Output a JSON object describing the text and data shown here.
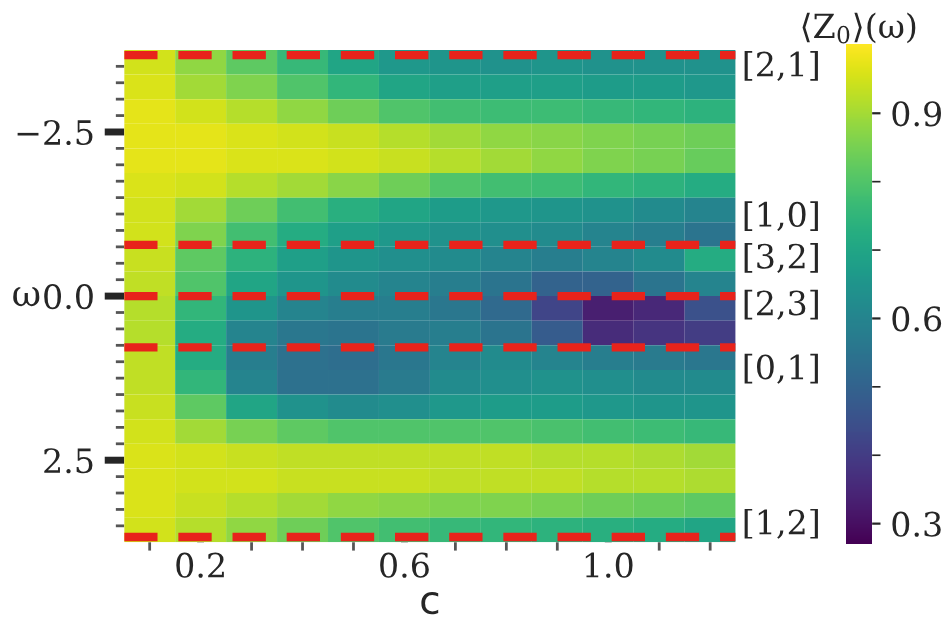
{
  "chart_data": {
    "type": "heatmap",
    "xlabel": "c",
    "ylabel": "ω",
    "clabel": "⟨Z$_{0}$⟩(ω)",
    "x": [
      0.1,
      0.2,
      0.3,
      0.4,
      0.5,
      0.6,
      0.7,
      0.8,
      0.9,
      1.0,
      1.1,
      1.2
    ],
    "y": [
      -3.5625,
      -3.1875,
      -2.8125,
      -2.4375,
      -2.0625,
      -1.6875,
      -1.3125,
      -0.9375,
      -0.5625,
      -0.1875,
      0.1875,
      0.5625,
      0.9375,
      1.3125,
      1.6875,
      2.0625,
      2.4375,
      2.8125,
      3.1875,
      3.5625
    ],
    "cells": [
      [
        0.95,
        0.88,
        0.82,
        0.76,
        0.7,
        0.66,
        0.65,
        0.64,
        0.65,
        0.64,
        0.64,
        0.64
      ],
      [
        0.96,
        0.9,
        0.86,
        0.8,
        0.75,
        0.7,
        0.68,
        0.68,
        0.68,
        0.67,
        0.67,
        0.66
      ],
      [
        0.97,
        0.95,
        0.92,
        0.88,
        0.84,
        0.8,
        0.78,
        0.77,
        0.77,
        0.76,
        0.75,
        0.74
      ],
      [
        0.97,
        0.97,
        0.96,
        0.95,
        0.94,
        0.92,
        0.9,
        0.88,
        0.87,
        0.86,
        0.85,
        0.84
      ],
      [
        0.97,
        0.97,
        0.96,
        0.96,
        0.95,
        0.94,
        0.92,
        0.9,
        0.88,
        0.86,
        0.85,
        0.83
      ],
      [
        0.96,
        0.95,
        0.92,
        0.9,
        0.87,
        0.84,
        0.8,
        0.78,
        0.77,
        0.75,
        0.74,
        0.72
      ],
      [
        0.95,
        0.9,
        0.84,
        0.78,
        0.73,
        0.7,
        0.67,
        0.66,
        0.65,
        0.64,
        0.62,
        0.6
      ],
      [
        0.95,
        0.86,
        0.78,
        0.72,
        0.68,
        0.66,
        0.64,
        0.63,
        0.62,
        0.6,
        0.58,
        0.55
      ],
      [
        0.94,
        0.82,
        0.74,
        0.68,
        0.65,
        0.63,
        0.62,
        0.6,
        0.58,
        0.6,
        0.62,
        0.72
      ],
      [
        0.93,
        0.8,
        0.7,
        0.65,
        0.62,
        0.6,
        0.58,
        0.55,
        0.5,
        0.5,
        0.55,
        0.6
      ],
      [
        0.92,
        0.75,
        0.65,
        0.6,
        0.58,
        0.58,
        0.56,
        0.52,
        0.42,
        0.33,
        0.35,
        0.45
      ],
      [
        0.92,
        0.72,
        0.6,
        0.56,
        0.55,
        0.57,
        0.58,
        0.55,
        0.48,
        0.36,
        0.38,
        0.4
      ],
      [
        0.93,
        0.72,
        0.58,
        0.54,
        0.53,
        0.56,
        0.6,
        0.62,
        0.6,
        0.58,
        0.57,
        0.56
      ],
      [
        0.93,
        0.75,
        0.6,
        0.54,
        0.54,
        0.57,
        0.62,
        0.63,
        0.64,
        0.63,
        0.62,
        0.62
      ],
      [
        0.94,
        0.82,
        0.7,
        0.64,
        0.62,
        0.63,
        0.66,
        0.67,
        0.67,
        0.66,
        0.65,
        0.65
      ],
      [
        0.95,
        0.9,
        0.85,
        0.82,
        0.8,
        0.8,
        0.8,
        0.8,
        0.79,
        0.78,
        0.77,
        0.76
      ],
      [
        0.96,
        0.95,
        0.94,
        0.93,
        0.93,
        0.93,
        0.93,
        0.93,
        0.92,
        0.92,
        0.91,
        0.9
      ],
      [
        0.96,
        0.95,
        0.95,
        0.94,
        0.94,
        0.94,
        0.93,
        0.93,
        0.93,
        0.92,
        0.92,
        0.91
      ],
      [
        0.96,
        0.94,
        0.92,
        0.9,
        0.88,
        0.87,
        0.86,
        0.86,
        0.85,
        0.84,
        0.83,
        0.82
      ],
      [
        0.95,
        0.92,
        0.88,
        0.84,
        0.8,
        0.78,
        0.76,
        0.75,
        0.74,
        0.73,
        0.72,
        0.7
      ]
    ],
    "xlim": [
      0.05,
      1.25
    ],
    "ylim": [
      3.75,
      -3.75
    ],
    "clim": [
      0.27,
      1.0
    ],
    "xticks": [
      {
        "value": 0.1,
        "label": null
      },
      0.2,
      {
        "value": 0.3,
        "label": null
      },
      {
        "value": 0.4,
        "label": null
      },
      {
        "value": 0.5,
        "label": null
      },
      0.6,
      {
        "value": 0.7,
        "label": null
      },
      {
        "value": 0.8,
        "label": null
      },
      {
        "value": 0.9,
        "label": null
      },
      {
        "value": 1.0,
        "label": "1.0"
      },
      {
        "value": 1.1,
        "label": null
      },
      {
        "value": 1.2,
        "label": null
      }
    ],
    "yticks": [
      {
        "value": -3.5,
        "label": null
      },
      {
        "value": -3.25,
        "label": null
      },
      {
        "value": -3.0,
        "label": null
      },
      {
        "value": -2.75,
        "label": null
      },
      {
        "value": -2.5,
        "label": "−2.5"
      },
      {
        "value": -2.25,
        "label": null
      },
      {
        "value": -2.0,
        "label": null
      },
      {
        "value": -1.75,
        "label": null
      },
      {
        "value": -1.5,
        "label": null
      },
      {
        "value": -1.25,
        "label": null
      },
      {
        "value": -1.0,
        "label": null
      },
      {
        "value": -0.75,
        "label": null
      },
      {
        "value": -0.5,
        "label": null
      },
      {
        "value": -0.25,
        "label": null
      },
      {
        "value": 0.0,
        "label": "0.0"
      },
      {
        "value": 0.25,
        "label": null
      },
      {
        "value": 0.5,
        "label": null
      },
      {
        "value": 0.75,
        "label": null
      },
      {
        "value": 1.0,
        "label": null
      },
      {
        "value": 1.25,
        "label": null
      },
      {
        "value": 1.5,
        "label": null
      },
      {
        "value": 1.75,
        "label": null
      },
      {
        "value": 2.0,
        "label": null
      },
      {
        "value": 2.25,
        "label": null
      },
      {
        "value": 2.5,
        "label": "2.5"
      },
      {
        "value": 2.75,
        "label": null
      },
      {
        "value": 3.0,
        "label": null
      },
      {
        "value": 3.25,
        "label": null
      },
      {
        "value": 3.5,
        "label": null
      }
    ],
    "cticks": [
      0.3,
      {
        "value": 0.4,
        "label": null
      },
      {
        "value": 0.5,
        "label": null
      },
      0.6,
      {
        "value": 0.7,
        "label": null
      },
      {
        "value": 0.8,
        "label": null
      },
      0.9
    ],
    "ref_lines": [
      {
        "axis": "y",
        "value": -3.67,
        "color": "#e8231b",
        "line_style": "dashed"
      },
      {
        "axis": "y",
        "value": -0.78,
        "color": "#e8231b",
        "line_style": "dashed"
      },
      {
        "axis": "y",
        "value": 0.0,
        "color": "#e8231b",
        "line_style": "dashed"
      },
      {
        "axis": "y",
        "value": 0.78,
        "color": "#e8231b",
        "line_style": "dashed"
      },
      {
        "axis": "y",
        "value": 3.67,
        "color": "#e8231b",
        "line_style": "dashed"
      }
    ],
    "annotations": [
      "[2,1]",
      "[1,0]",
      "[3,2]",
      "[2,3]",
      "[0,1]",
      "[1,2]"
    ]
  }
}
